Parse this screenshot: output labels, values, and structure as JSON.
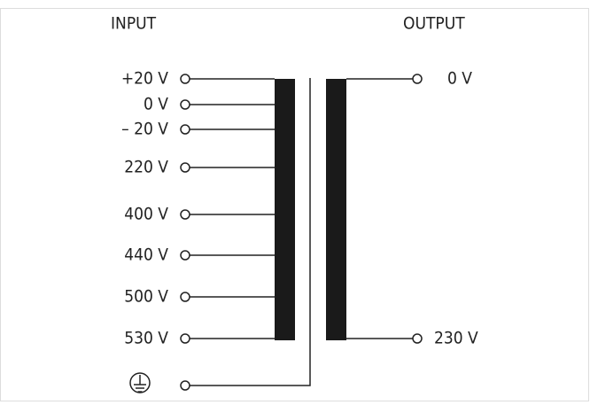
{
  "input_title": "INPUT",
  "output_title": "OUTPUT",
  "inputs": [
    "+20 V",
    "0 V",
    "– 20 V",
    "220 V",
    "400 V",
    "440 V",
    "500 V",
    "530 V"
  ],
  "outputs": [
    "0 V",
    "230 V"
  ]
}
